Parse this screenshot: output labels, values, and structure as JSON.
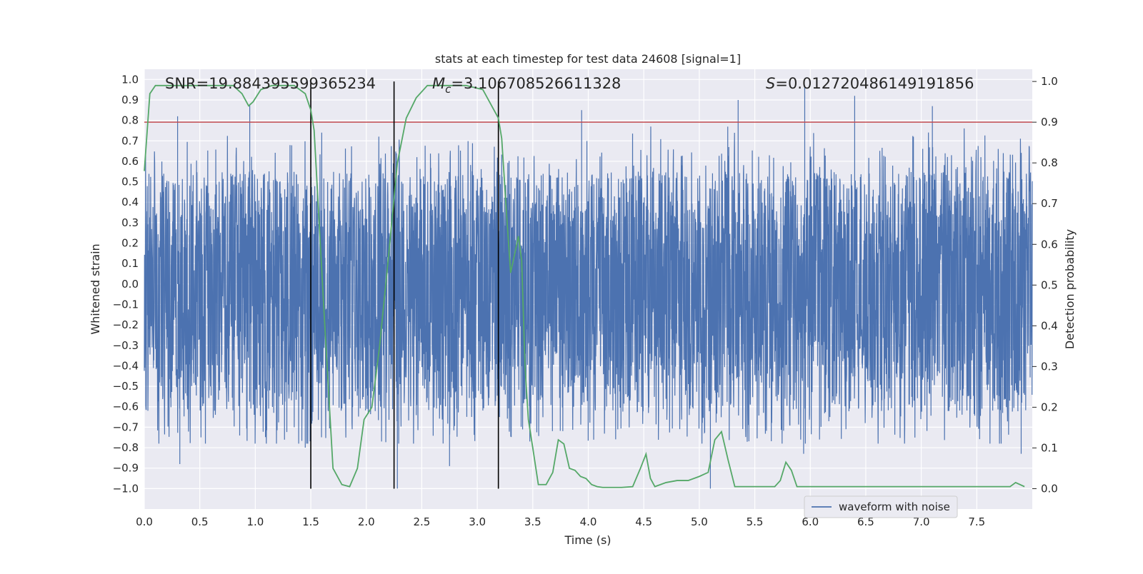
{
  "chart_data": {
    "type": "line",
    "title": "stats at each timestep for test data 24608 [signal=1]",
    "xlabel": "Time (s)",
    "ylabel_left": "Whitened strain",
    "ylabel_right": "Detection probability",
    "xlim": [
      0,
      8
    ],
    "ylim_left": [
      -1.1,
      1.05
    ],
    "ylim_right": [
      -0.05,
      1.03
    ],
    "x_ticks": [
      "0.0",
      "0.5",
      "1.0",
      "1.5",
      "2.0",
      "2.5",
      "3.0",
      "3.5",
      "4.0",
      "4.5",
      "5.0",
      "5.5",
      "6.0",
      "6.5",
      "7.0",
      "7.5"
    ],
    "y_ticks_left": [
      "1.0",
      "0.9",
      "0.8",
      "0.7",
      "0.6",
      "0.5",
      "0.4",
      "0.3",
      "0.2",
      "0.1",
      "0.0",
      "−0.1",
      "−0.2",
      "−0.3",
      "−0.4",
      "−0.5",
      "−0.6",
      "−0.7",
      "−0.8",
      "−0.9",
      "−1.0"
    ],
    "y_ticks_right": [
      "1.0",
      "0.9",
      "0.8",
      "0.7",
      "0.6",
      "0.5",
      "0.4",
      "0.3",
      "0.2",
      "0.1",
      "0.0"
    ],
    "grid": true,
    "legend_placement": "lower-center",
    "annotations": {
      "snr": "SNR=19.884395599365234",
      "mc_symbol": "M",
      "mc_sub": "c",
      "mc_value": "=3.106708526611328",
      "s_symbol": "S",
      "s_value": "=0.012720486149191856"
    },
    "threshold": {
      "value": 0.9,
      "axis": "right",
      "color": "#c44e52"
    },
    "vertical_lines": [
      1.5,
      2.25,
      3.19
    ],
    "waveform": {
      "name": "waveform with noise",
      "color": "#4c72b0",
      "typical_envelope_upper": 0.37,
      "typical_envelope_lower": -0.42,
      "noise_seed": 24608,
      "spikes": [
        [
          0.3,
          0.82
        ],
        [
          0.32,
          -0.88
        ],
        [
          0.95,
          0.88
        ],
        [
          2.28,
          -1.0
        ],
        [
          2.75,
          -0.89
        ],
        [
          3.94,
          0.85
        ],
        [
          5.1,
          -1.0
        ],
        [
          5.35,
          0.9
        ],
        [
          5.95,
          0.97
        ],
        [
          5.94,
          -0.83
        ],
        [
          6.4,
          0.92
        ],
        [
          7.1,
          0.87
        ],
        [
          7.9,
          -0.83
        ],
        [
          3.2,
          -0.65
        ],
        [
          1.45,
          -0.8
        ]
      ]
    },
    "probability": {
      "color": "#55a868",
      "x": [
        0.0,
        0.05,
        0.1,
        0.2,
        0.4,
        0.6,
        0.8,
        0.88,
        0.94,
        0.98,
        1.05,
        1.15,
        1.25,
        1.35,
        1.45,
        1.5,
        1.53,
        1.57,
        1.62,
        1.7,
        1.78,
        1.85,
        1.92,
        1.98,
        2.05,
        2.12,
        2.2,
        2.28,
        2.36,
        2.45,
        2.55,
        2.65,
        2.75,
        2.9,
        3.05,
        3.15,
        3.19,
        3.22,
        3.26,
        3.3,
        3.34,
        3.37,
        3.4,
        3.43,
        3.46,
        3.5,
        3.55,
        3.62,
        3.68,
        3.73,
        3.78,
        3.83,
        3.88,
        3.93,
        3.98,
        4.03,
        4.08,
        4.13,
        4.2,
        4.3,
        4.4,
        4.47,
        4.52,
        4.56,
        4.6,
        4.65,
        4.7,
        4.8,
        4.9,
        5.0,
        5.08,
        5.14,
        5.2,
        5.26,
        5.32,
        5.4,
        5.5,
        5.6,
        5.68,
        5.73,
        5.78,
        5.83,
        5.88,
        6.0,
        6.2,
        6.4,
        6.6,
        6.8,
        7.0,
        7.2,
        7.4,
        7.6,
        7.8,
        7.85,
        7.93
      ],
      "y": [
        0.78,
        0.97,
        0.99,
        0.99,
        0.99,
        0.99,
        0.99,
        0.97,
        0.94,
        0.95,
        0.98,
        0.99,
        0.99,
        0.99,
        0.97,
        0.93,
        0.88,
        0.68,
        0.43,
        0.05,
        0.01,
        0.005,
        0.05,
        0.17,
        0.2,
        0.35,
        0.57,
        0.8,
        0.91,
        0.96,
        0.99,
        0.99,
        0.99,
        0.99,
        0.98,
        0.93,
        0.91,
        0.86,
        0.69,
        0.53,
        0.58,
        0.62,
        0.56,
        0.3,
        0.17,
        0.1,
        0.01,
        0.01,
        0.04,
        0.12,
        0.11,
        0.05,
        0.045,
        0.03,
        0.025,
        0.01,
        0.005,
        0.003,
        0.003,
        0.003,
        0.005,
        0.05,
        0.085,
        0.025,
        0.005,
        0.01,
        0.015,
        0.02,
        0.02,
        0.03,
        0.04,
        0.12,
        0.14,
        0.07,
        0.005,
        0.005,
        0.005,
        0.005,
        0.005,
        0.02,
        0.065,
        0.045,
        0.005,
        0.005,
        0.005,
        0.005,
        0.005,
        0.005,
        0.005,
        0.005,
        0.005,
        0.005,
        0.005,
        0.015,
        0.005
      ]
    }
  }
}
